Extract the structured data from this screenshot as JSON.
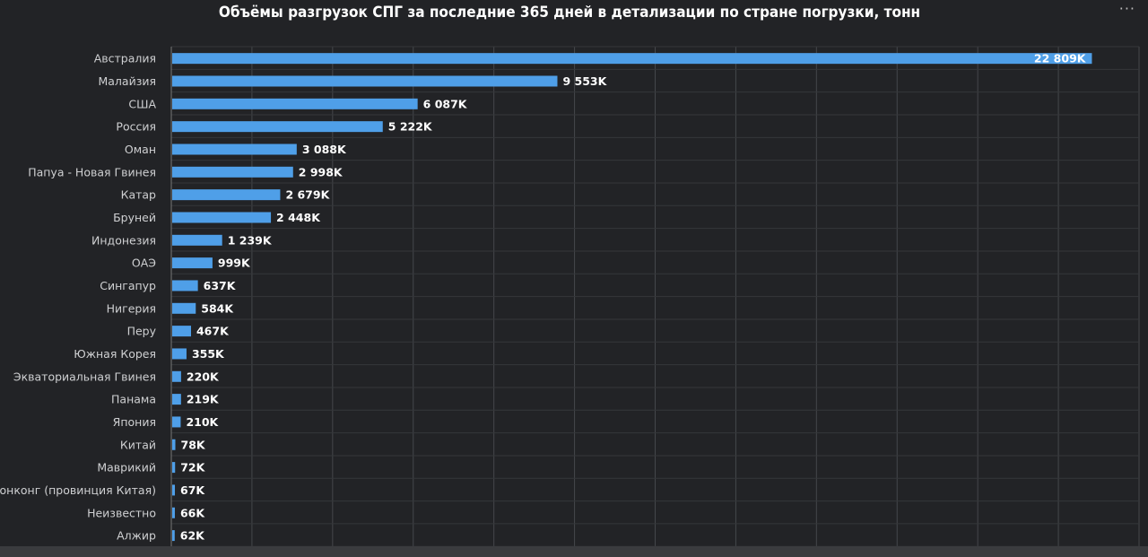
{
  "header": {
    "more_icon": "ellipsis-icon",
    "more_label": "···"
  },
  "chart_data": {
    "type": "bar",
    "orientation": "horizontal",
    "title": "Объёмы разгрузок СПГ за последние 365 дней в детализации по стране погрузки, тонн",
    "categories": [
      "Австралия",
      "Малайзия",
      "США",
      "Россия",
      "Оман",
      "Папуа - Новая Гвинея",
      "Катар",
      "Бруней",
      "Индонезия",
      "ОАЭ",
      "Сингапур",
      "Нигерия",
      "Перу",
      "Южная Корея",
      "Экваториальная Гвинея",
      "Панама",
      "Япония",
      "Китай",
      "Маврикий",
      "Гонконг (провинция Китая)",
      "Неизвестно",
      "Алжир"
    ],
    "values": [
      22809000,
      9553000,
      6087000,
      5222000,
      3088000,
      2998000,
      2679000,
      2448000,
      1239000,
      999000,
      637000,
      584000,
      467000,
      355000,
      220000,
      219000,
      210000,
      78000,
      72000,
      67000,
      66000,
      62000
    ],
    "labels": [
      "22 809K",
      "9 553K",
      "6 087K",
      "5 222K",
      "3 088K",
      "2 998K",
      "2 679K",
      "2 448K",
      "1 239K",
      "999K",
      "637K",
      "584K",
      "467K",
      "355K",
      "220K",
      "219K",
      "210K",
      "78K",
      "72K",
      "67K",
      "66K",
      "62K"
    ],
    "xlim": [
      0,
      24000000
    ],
    "xticks": [
      "0",
      "2M",
      "4M",
      "6M",
      "8M",
      "10M",
      "12M",
      "14M",
      "16M",
      "18M",
      "20M",
      "22M",
      "24M"
    ],
    "grid": true,
    "bar_color": "#4f9fe8",
    "background": "#222326"
  }
}
